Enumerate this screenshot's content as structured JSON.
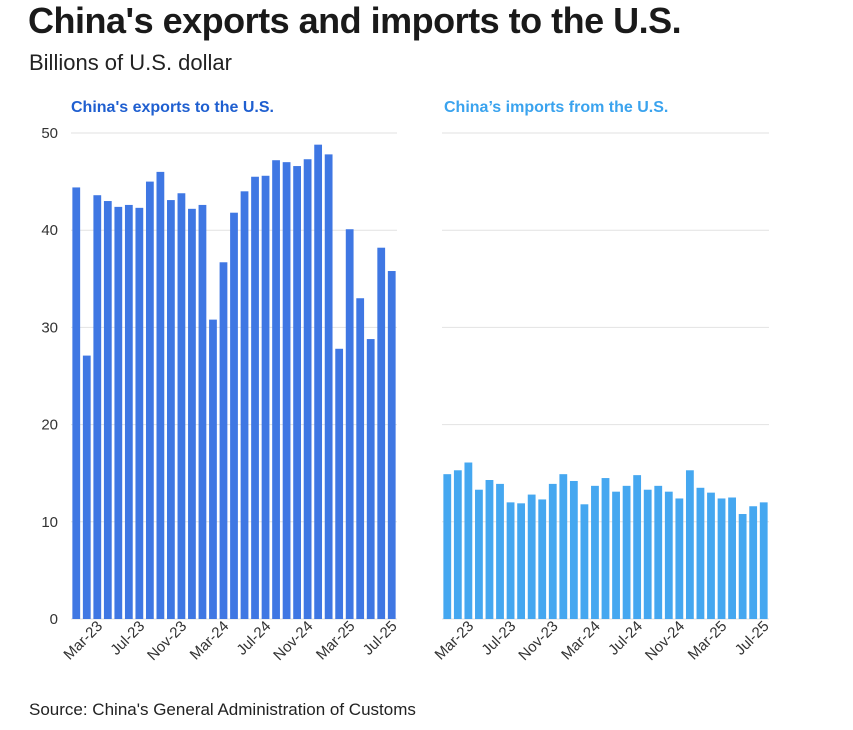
{
  "header": {
    "title": "China's exports and imports to the U.S.",
    "subtitle": "Billions of U.S. dollar"
  },
  "footer": {
    "source": "Source: China's General Administration of Customs"
  },
  "colors": {
    "exports": "#3f77e3",
    "imports": "#45a7f0",
    "exports_title": "#1f5fd0",
    "imports_title": "#3aa3ee"
  },
  "chart_data": [
    {
      "type": "bar",
      "title": "China's exports to the U.S.",
      "ylim": [
        0,
        50
      ],
      "yticks": [
        0,
        10,
        20,
        30,
        40,
        50
      ],
      "xtick_labels": [
        "Mar-23",
        "Jul-23",
        "Nov-23",
        "Mar-24",
        "Jul-24",
        "Nov-24",
        "Mar-25",
        "Jul-25"
      ],
      "categories": [
        "Jan-23",
        "Feb-23",
        "Mar-23",
        "Apr-23",
        "May-23",
        "Jun-23",
        "Jul-23",
        "Aug-23",
        "Sep-23",
        "Oct-23",
        "Nov-23",
        "Dec-23",
        "Jan-24",
        "Feb-24",
        "Mar-24",
        "Apr-24",
        "May-24",
        "Jun-24",
        "Jul-24",
        "Aug-24",
        "Sep-24",
        "Oct-24",
        "Nov-24",
        "Dec-24",
        "Jan-25",
        "Feb-25",
        "Mar-25",
        "Apr-25",
        "May-25",
        "Jun-25",
        "Jul-25"
      ],
      "values": [
        44.4,
        27.1,
        43.6,
        43.0,
        42.4,
        42.6,
        42.3,
        45.0,
        46.0,
        43.1,
        43.8,
        42.2,
        42.6,
        30.8,
        36.7,
        41.8,
        44.0,
        45.5,
        45.6,
        47.2,
        47.0,
        46.6,
        47.3,
        48.8,
        47.8,
        27.8,
        40.1,
        33.0,
        28.8,
        38.2,
        35.8
      ]
    },
    {
      "type": "bar",
      "title": "China’s imports from the U.S.",
      "ylim": [
        0,
        50
      ],
      "yticks": [
        0,
        10,
        20,
        30,
        40,
        50
      ],
      "xtick_labels": [
        "Mar-23",
        "Jul-23",
        "Nov-23",
        "Mar-24",
        "Jul-24",
        "Nov-24",
        "Mar-25",
        "Jul-25"
      ],
      "categories": [
        "Jan-23",
        "Feb-23",
        "Mar-23",
        "Apr-23",
        "May-23",
        "Jun-23",
        "Jul-23",
        "Aug-23",
        "Sep-23",
        "Oct-23",
        "Nov-23",
        "Dec-23",
        "Jan-24",
        "Feb-24",
        "Mar-24",
        "Apr-24",
        "May-24",
        "Jun-24",
        "Jul-24",
        "Aug-24",
        "Sep-24",
        "Oct-24",
        "Nov-24",
        "Dec-24",
        "Jan-25",
        "Feb-25",
        "Mar-25",
        "Apr-25",
        "May-25",
        "Jun-25",
        "Jul-25"
      ],
      "values": [
        14.9,
        15.3,
        16.1,
        13.3,
        14.3,
        13.9,
        12.0,
        11.9,
        12.8,
        12.3,
        13.9,
        14.9,
        14.2,
        11.8,
        13.7,
        14.5,
        13.1,
        13.7,
        14.8,
        13.3,
        13.7,
        13.1,
        12.4,
        15.3,
        13.5,
        13.0,
        12.4,
        12.5,
        10.8,
        11.6,
        12.0
      ]
    }
  ]
}
